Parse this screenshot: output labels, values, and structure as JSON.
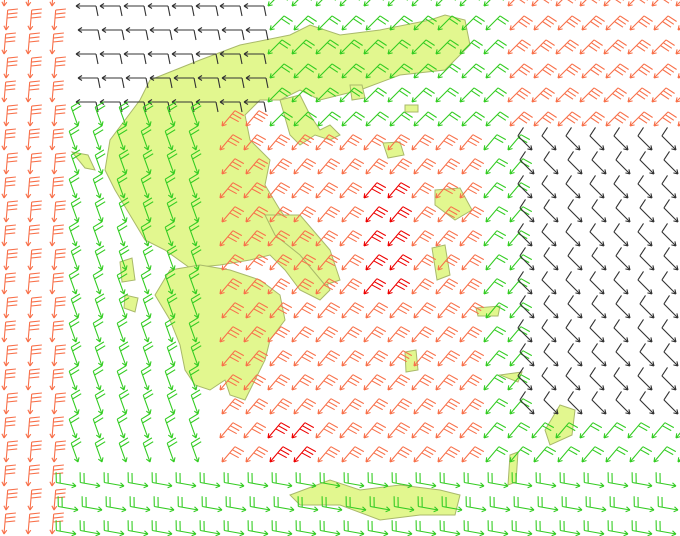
{
  "map": {
    "land_color": "#e2f78f",
    "land_stroke": "#a9b96a",
    "sea_color": "#ffffff",
    "wind_colors": {
      "light": "#333333",
      "moderate": "#33cc22",
      "strong": "#f8704a",
      "very_strong": "#ee0000"
    },
    "barb_grid_spacing_note": ""
  }
}
